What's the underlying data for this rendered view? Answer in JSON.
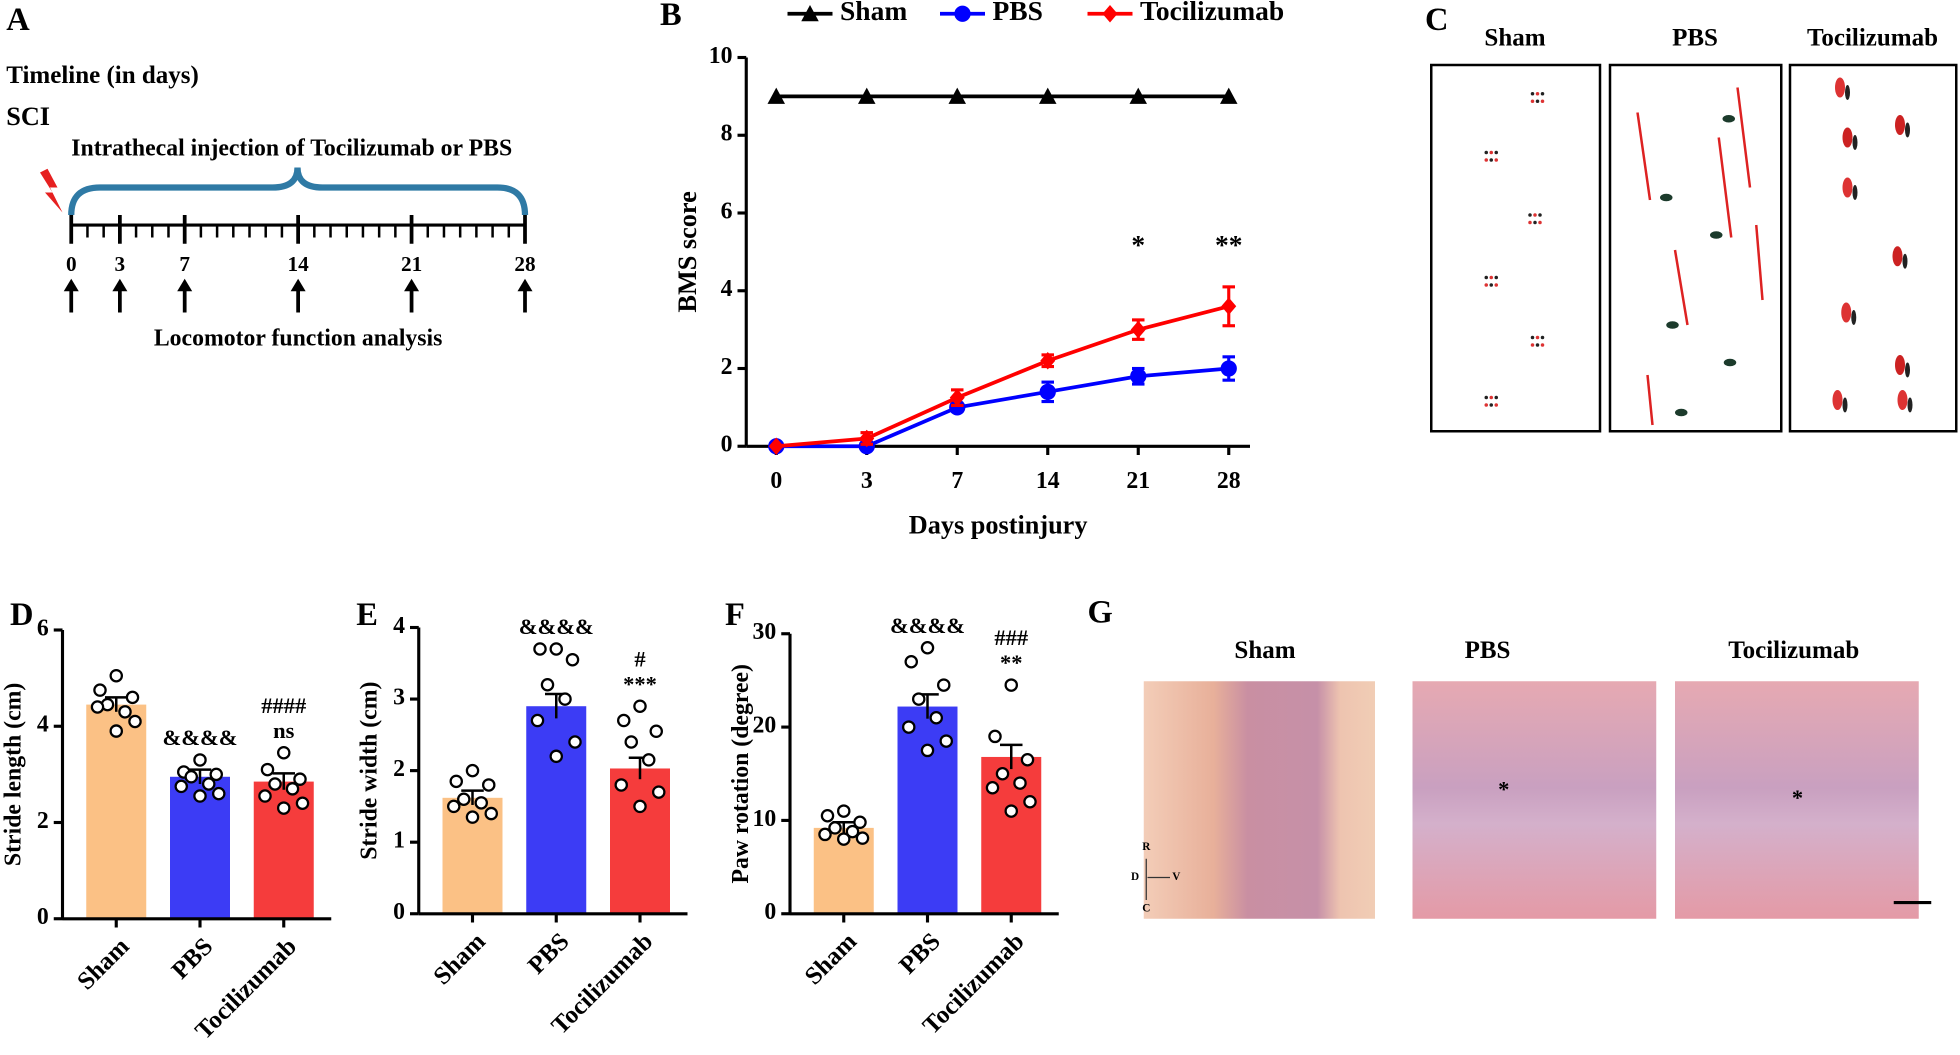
{
  "panel_a": {
    "panel_label": "A",
    "title": "Timeline (in days)",
    "event": "SCI",
    "injection": "Intrathecal injection of Tocilizumab or PBS",
    "ticks": [
      0,
      3,
      7,
      14,
      21,
      28
    ],
    "analysis": "Locomotor function analysis"
  },
  "panel_c": {
    "panel_label": "C",
    "labels": [
      "Sham",
      "PBS",
      "Tocilizumab"
    ]
  },
  "panel_g": {
    "panel_label": "G",
    "labels": [
      "Sham",
      "PBS",
      "Tocilizumab"
    ],
    "orientation": [
      "R",
      "D",
      "V",
      "C"
    ]
  },
  "chart_data": [
    {
      "type": "line",
      "panel_label": "B",
      "categories": [
        0,
        3,
        7,
        14,
        21,
        28
      ],
      "xlabel": "Days postinjury",
      "ylabel": "BMS score",
      "ylim": [
        0,
        10
      ],
      "yticks": [
        0,
        2,
        4,
        6,
        8,
        10
      ],
      "annotations": [
        null,
        null,
        null,
        null,
        "*",
        "**"
      ],
      "series": [
        {
          "name": "Sham",
          "color": "#000000",
          "marker": "triangle",
          "values": [
            9,
            9,
            9,
            9,
            9,
            9
          ]
        },
        {
          "name": "PBS",
          "color": "#0000ff",
          "marker": "circle",
          "values": [
            0,
            0,
            1,
            1.4,
            1.8,
            2
          ],
          "errors": [
            0,
            0,
            0.1,
            0.25,
            0.2,
            0.3
          ]
        },
        {
          "name": "Tocilizumab",
          "color": "#ff0000",
          "marker": "diamond",
          "values": [
            0,
            0.2,
            1.25,
            2.2,
            3.0,
            3.6
          ],
          "errors": [
            0,
            0.15,
            0.2,
            0.15,
            0.25,
            0.5
          ]
        }
      ]
    },
    {
      "type": "bar",
      "panel_label": "D",
      "categories": [
        "Sham",
        "PBS",
        "Tocilizumab"
      ],
      "colors": [
        "#fbc185",
        "#3c3cf5",
        "#f53c3c"
      ],
      "values": [
        4.45,
        2.95,
        2.85
      ],
      "errors": [
        0.15,
        0.15,
        0.17
      ],
      "points": [
        [
          5.05,
          4.75,
          4.6,
          4.45,
          4.3,
          4.4,
          4.1,
          3.9
        ],
        [
          3.3,
          3.05,
          3.0,
          2.95,
          2.8,
          2.75,
          2.6,
          2.55
        ],
        [
          3.45,
          3.1,
          2.9,
          2.8,
          2.7,
          2.55,
          2.4,
          2.3
        ]
      ],
      "annotations": [
        [],
        [
          "&&&&"
        ],
        [
          "####",
          "ns"
        ]
      ],
      "ylabel": "Stride length (cm)",
      "ylim": [
        0,
        6
      ],
      "yticks": [
        0,
        2,
        4,
        6
      ]
    },
    {
      "type": "bar",
      "panel_label": "E",
      "categories": [
        "Sham",
        "PBS",
        "Tocilizumab"
      ],
      "colors": [
        "#fbc185",
        "#3c3cf5",
        "#f53c3c"
      ],
      "values": [
        1.62,
        2.9,
        2.03
      ],
      "errors": [
        0.1,
        0.17,
        0.15
      ],
      "points": [
        [
          2.0,
          1.85,
          1.8,
          1.6,
          1.55,
          1.5,
          1.4,
          1.35
        ],
        [
          3.7,
          3.7,
          3.55,
          3.2,
          3.0,
          2.7,
          2.4,
          2.2
        ],
        [
          2.9,
          2.7,
          2.55,
          2.4,
          2.15,
          1.8,
          1.7,
          1.5
        ]
      ],
      "annotations": [
        [],
        [
          "&&&&"
        ],
        [
          "#",
          "***"
        ]
      ],
      "ylabel": "Stride width (cm)",
      "ylim": [
        0,
        4
      ],
      "yticks": [
        0,
        1,
        2,
        3,
        4
      ]
    },
    {
      "type": "bar",
      "panel_label": "F",
      "categories": [
        "Sham",
        "PBS",
        "Tocilizumab"
      ],
      "colors": [
        "#fbc185",
        "#3c3cf5",
        "#f53c3c"
      ],
      "values": [
        9.2,
        22.2,
        16.8
      ],
      "errors": [
        0.6,
        1.3,
        1.3
      ],
      "points": [
        [
          11,
          10.5,
          9.8,
          9.2,
          8.8,
          8.5,
          8.1,
          8.0
        ],
        [
          28.5,
          27,
          24.5,
          23,
          21,
          20,
          18.5,
          17.5
        ],
        [
          24.5,
          19,
          16.5,
          15,
          14,
          13.5,
          12,
          11
        ]
      ],
      "annotations": [
        [],
        [
          "&&&&"
        ],
        [
          "###",
          "**"
        ]
      ],
      "ylabel": "Paw rotation (degree)",
      "ylim": [
        0,
        30
      ],
      "yticks": [
        0,
        10,
        20,
        30
      ]
    }
  ]
}
